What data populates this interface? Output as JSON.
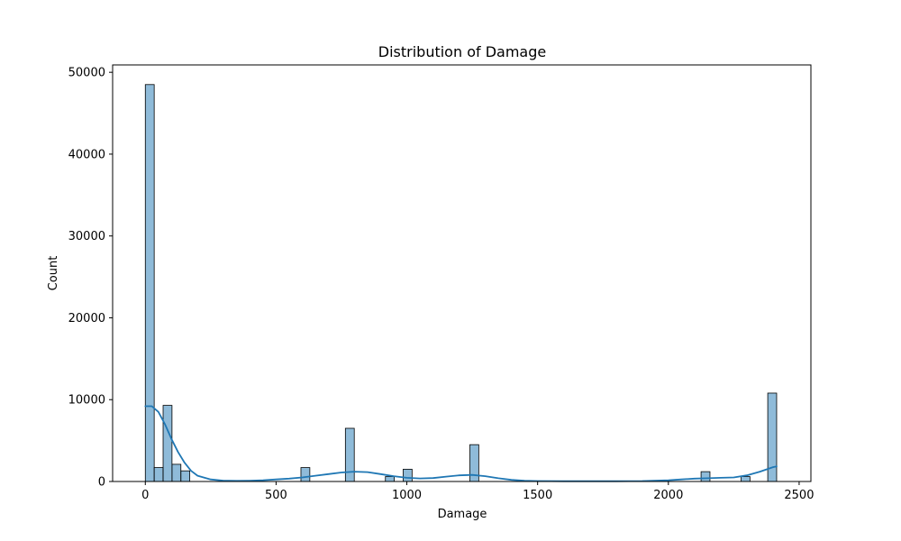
{
  "chart_data": {
    "type": "bar",
    "title": "Distribution of Damage",
    "xlabel": "Damage",
    "ylabel": "Count",
    "xlim": [
      -125,
      2545
    ],
    "ylim": [
      0,
      50900
    ],
    "xticks": [
      0,
      500,
      1000,
      1500,
      2000,
      2500
    ],
    "yticks": [
      0,
      10000,
      20000,
      30000,
      40000,
      50000
    ],
    "grid": false,
    "legend": "none",
    "colors": {
      "bar_fill": "#1f77b4",
      "bar_fill_opacity": 0.5,
      "bar_edge": "#000000",
      "kde_line": "#1f77b4"
    },
    "bins": [
      {
        "x0": 0,
        "x1": 34,
        "count": 48500
      },
      {
        "x0": 34,
        "x1": 68,
        "count": 1700
      },
      {
        "x0": 68,
        "x1": 102,
        "count": 9300
      },
      {
        "x0": 102,
        "x1": 136,
        "count": 2100
      },
      {
        "x0": 136,
        "x1": 170,
        "count": 1300
      },
      {
        "x0": 595,
        "x1": 629,
        "count": 1700
      },
      {
        "x0": 765,
        "x1": 799,
        "count": 6500
      },
      {
        "x0": 918,
        "x1": 952,
        "count": 600
      },
      {
        "x0": 986,
        "x1": 1020,
        "count": 1500
      },
      {
        "x0": 1241,
        "x1": 1275,
        "count": 4500
      },
      {
        "x0": 2125,
        "x1": 2159,
        "count": 1200
      },
      {
        "x0": 2278,
        "x1": 2312,
        "count": 600
      },
      {
        "x0": 2380,
        "x1": 2414,
        "count": 10800
      }
    ],
    "kde": {
      "x": [
        0,
        25,
        50,
        75,
        100,
        125,
        150,
        175,
        200,
        250,
        300,
        350,
        400,
        450,
        500,
        550,
        600,
        650,
        700,
        750,
        800,
        850,
        900,
        950,
        1000,
        1050,
        1100,
        1150,
        1200,
        1250,
        1300,
        1350,
        1400,
        1450,
        1500,
        1600,
        1700,
        1800,
        1900,
        2000,
        2050,
        2100,
        2150,
        2200,
        2250,
        2300,
        2350,
        2400,
        2414
      ],
      "y": [
        9200,
        9200,
        8500,
        7000,
        5200,
        3600,
        2300,
        1300,
        700,
        250,
        100,
        80,
        100,
        150,
        250,
        350,
        500,
        700,
        900,
        1100,
        1200,
        1150,
        900,
        650,
        450,
        380,
        420,
        600,
        750,
        800,
        650,
        400,
        200,
        100,
        60,
        30,
        30,
        30,
        60,
        150,
        250,
        350,
        400,
        450,
        500,
        750,
        1200,
        1750,
        1850
      ]
    }
  }
}
